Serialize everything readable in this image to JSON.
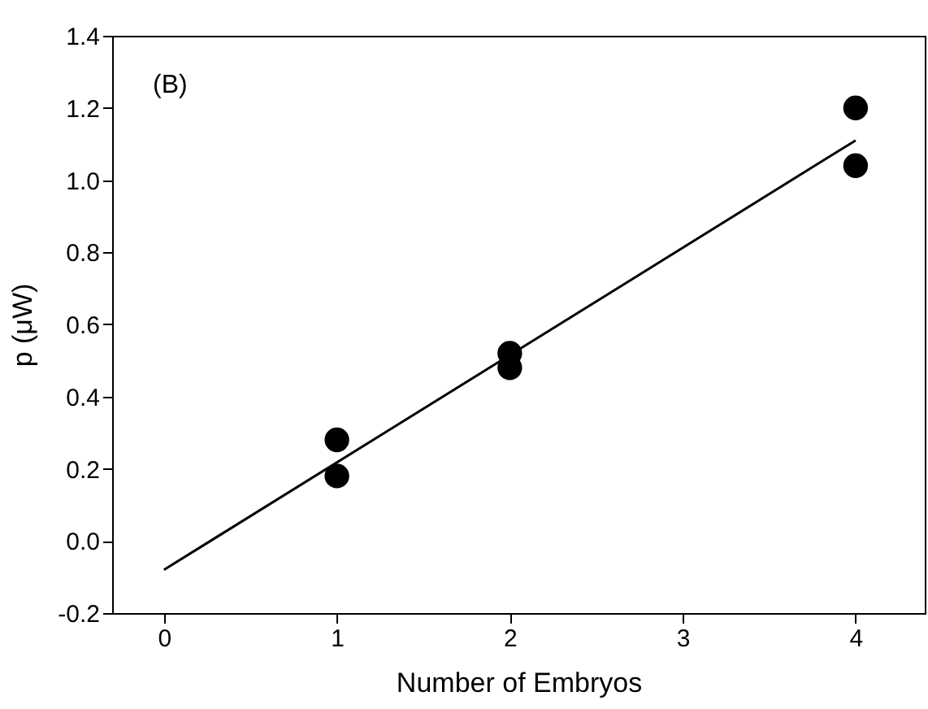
{
  "chart_data": {
    "type": "scatter",
    "xlabel": "Number of Embryos",
    "ylabel": "p (μW)",
    "annotations": [
      "(B)"
    ],
    "x": [
      1,
      1,
      2,
      2,
      4,
      4
    ],
    "values": [
      0.28,
      0.18,
      0.52,
      0.48,
      1.2,
      1.04
    ],
    "color": "#000000",
    "marker": "circle",
    "series": [
      {
        "type": "line",
        "x": [
          0,
          4
        ],
        "values": [
          -0.08,
          1.11
        ],
        "color": "#000000",
        "line_style": "solid",
        "marker": "none"
      }
    ],
    "xlim": [
      -0.3,
      4.4
    ],
    "xticks": [
      0,
      1,
      2,
      3,
      4
    ],
    "ylim": [
      -0.2,
      1.4
    ],
    "yticks": [
      -0.2,
      {
        "value": 0,
        "label": "0.0"
      },
      0.2,
      0.4,
      0.6,
      0.8,
      {
        "value": 1,
        "label": "1.0"
      },
      1.2,
      1.4
    ],
    "grid": false
  }
}
